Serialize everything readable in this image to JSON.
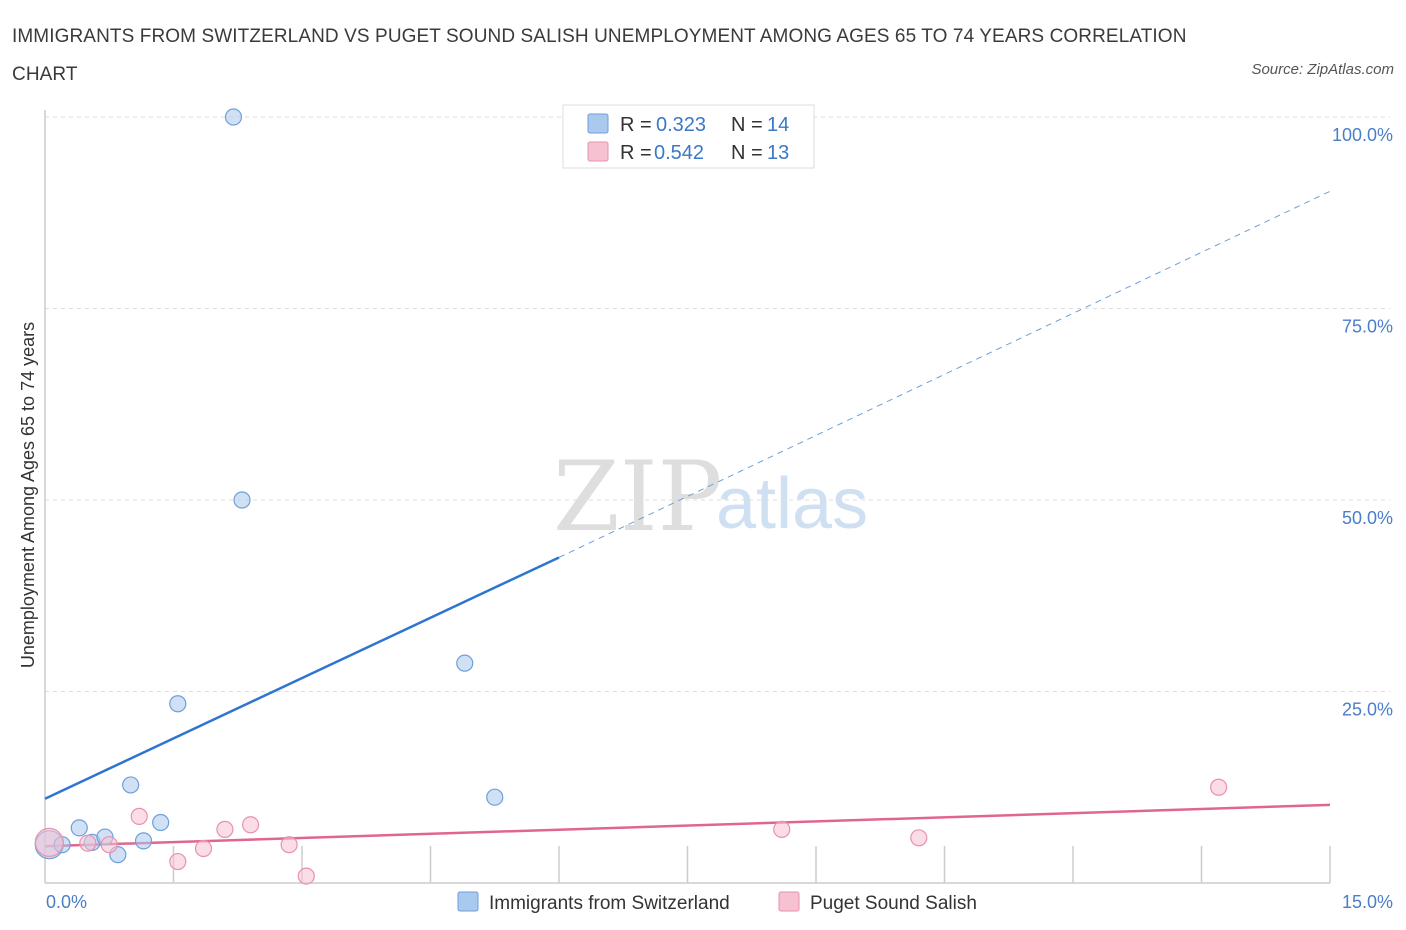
{
  "title": "IMMIGRANTS FROM SWITZERLAND VS PUGET SOUND SALISH UNEMPLOYMENT AMONG AGES 65 TO 74 YEARS CORRELATION CHART",
  "source": "Source: ZipAtlas.com",
  "watermark": {
    "zip": "ZIP",
    "atlas": "atlas"
  },
  "colors": {
    "blue": "#a9c9ee",
    "blue_stroke": "#6f9fd8",
    "blue_line": "#2f74cf",
    "pink": "#f6c1d1",
    "pink_stroke": "#e792ad",
    "pink_line": "#e06690",
    "axis_text": "#4a7ec9"
  },
  "legend": {
    "r_label": "R =",
    "n_label": "N =",
    "rows": [
      {
        "r": "0.323",
        "n": "14"
      },
      {
        "r": "0.542",
        "n": "13"
      }
    ]
  },
  "chart_data": {
    "type": "scatter",
    "title": "IMMIGRANTS FROM SWITZERLAND VS PUGET SOUND SALISH UNEMPLOYMENT AMONG AGES 65 TO 74 YEARS CORRELATION CHART",
    "xlabel": "",
    "ylabel": "Unemployment Among Ages 65 to 74 years",
    "xlim": [
      0,
      15
    ],
    "ylim": [
      0,
      100
    ],
    "x_tick_labels": [
      "0.0%",
      "15.0%"
    ],
    "y_tick_labels": [
      "25.0%",
      "50.0%",
      "75.0%",
      "100.0%"
    ],
    "y_ticks": [
      25,
      50,
      75,
      100
    ],
    "grid": true,
    "legend_position": "top-center",
    "series": [
      {
        "name": "Immigrants from Switzerland",
        "points": [
          {
            "x": 0.05,
            "y": 5.0,
            "big": true
          },
          {
            "x": 0.2,
            "y": 5.0
          },
          {
            "x": 0.4,
            "y": 7.2
          },
          {
            "x": 0.55,
            "y": 5.3
          },
          {
            "x": 0.7,
            "y": 6.0
          },
          {
            "x": 0.85,
            "y": 3.7
          },
          {
            "x": 1.0,
            "y": 12.8
          },
          {
            "x": 1.15,
            "y": 5.5
          },
          {
            "x": 1.35,
            "y": 7.9
          },
          {
            "x": 1.55,
            "y": 23.4
          },
          {
            "x": 2.2,
            "y": 100.0
          },
          {
            "x": 2.3,
            "y": 50.0
          },
          {
            "x": 4.9,
            "y": 28.7
          },
          {
            "x": 5.25,
            "y": 11.2
          }
        ],
        "trend": {
          "x0": 0,
          "y0": 11.0,
          "x1": 6.0,
          "y1": 42.5,
          "dashed_to_x": 15.0,
          "dashed_to_y": 90.3
        }
      },
      {
        "name": "Puget Sound Salish",
        "points": [
          {
            "x": 0.05,
            "y": 5.3,
            "big": true
          },
          {
            "x": 0.5,
            "y": 5.2
          },
          {
            "x": 0.75,
            "y": 5.0
          },
          {
            "x": 1.1,
            "y": 8.7
          },
          {
            "x": 1.55,
            "y": 2.8
          },
          {
            "x": 1.85,
            "y": 4.5
          },
          {
            "x": 2.1,
            "y": 7.0
          },
          {
            "x": 2.4,
            "y": 7.6
          },
          {
            "x": 2.85,
            "y": 5.0
          },
          {
            "x": 3.05,
            "y": 0.9
          },
          {
            "x": 8.6,
            "y": 7.0
          },
          {
            "x": 10.2,
            "y": 5.9
          },
          {
            "x": 13.7,
            "y": 12.5
          }
        ],
        "trend": {
          "x0": 0,
          "y0": 4.8,
          "x1": 15.0,
          "y1": 10.2
        }
      }
    ]
  }
}
